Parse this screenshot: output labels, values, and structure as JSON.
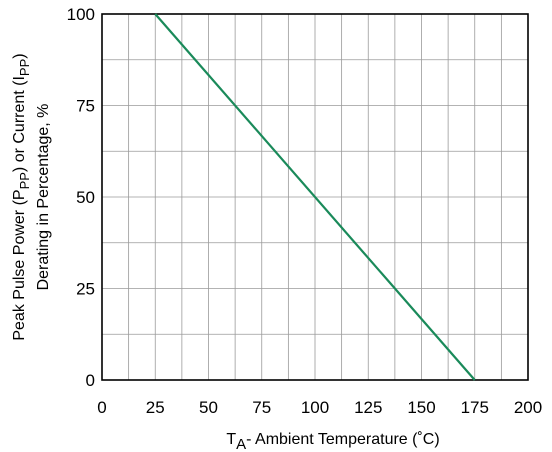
{
  "chart_data": {
    "type": "line",
    "title": "",
    "ylabel_line1": "Peak Pulse Power (P",
    "ylabel_sub": "PP",
    "ylabel_line1_end": ") or Current (I",
    "ylabel_sub2": "PP",
    "ylabel_line1_close": ")",
    "ylabel_line2": "Derating in Percentage, %",
    "xlabel_main": "T",
    "xlabel_sub": "A",
    "xlabel_rest": "- Ambient Temperature (˚C)",
    "xlim": [
      0,
      200
    ],
    "ylim": [
      0,
      100
    ],
    "x_ticks": [
      0,
      25,
      50,
      75,
      100,
      125,
      150,
      175,
      200
    ],
    "y_ticks": [
      0,
      25,
      50,
      75,
      100
    ],
    "x_grid": [
      0,
      12.5,
      25,
      37.5,
      50,
      62.5,
      75,
      87.5,
      100,
      112.5,
      125,
      137.5,
      150,
      162.5,
      175,
      187.5,
      200
    ],
    "y_grid": [
      0,
      12.5,
      25,
      37.5,
      50,
      62.5,
      75,
      87.5,
      100
    ],
    "grid": true,
    "series": [
      {
        "color": "#1a8a5a",
        "points": [
          [
            25,
            100
          ],
          [
            175,
            0
          ]
        ]
      }
    ]
  }
}
